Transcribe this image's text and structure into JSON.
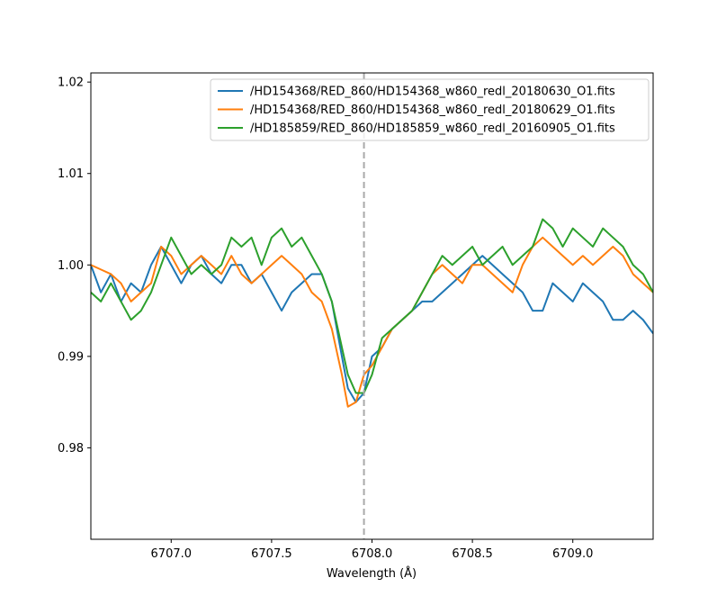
{
  "chart_data": {
    "type": "line",
    "title": "",
    "xlabel": "Wavelength (Å)",
    "ylabel": "",
    "xlim": [
      6706.6,
      6709.4
    ],
    "ylim": [
      0.97,
      1.021
    ],
    "x_ticks": [
      6707.0,
      6707.5,
      6708.0,
      6708.5,
      6709.0
    ],
    "x_tick_labels": [
      "6707.0",
      "6707.5",
      "6708.0",
      "6708.5",
      "6709.0"
    ],
    "y_ticks": [
      0.98,
      0.99,
      1.0,
      1.01,
      1.02
    ],
    "y_tick_labels": [
      "0.98",
      "0.99",
      "1.00",
      "1.01",
      "1.02"
    ],
    "reference_line": {
      "x": 6707.96,
      "style": "dashed",
      "color": "#aaaaaa"
    },
    "grid": false,
    "legend_position": "top-right",
    "series": [
      {
        "name": "/HD154368/RED_860/HD154368_w860_redl_20180630_O1.fits",
        "color": "#1f77b4",
        "x": [
          6706.6,
          6706.65,
          6706.7,
          6706.75,
          6706.8,
          6706.85,
          6706.9,
          6706.95,
          6707.0,
          6707.05,
          6707.1,
          6707.15,
          6707.2,
          6707.25,
          6707.3,
          6707.35,
          6707.4,
          6707.45,
          6707.5,
          6707.55,
          6707.6,
          6707.65,
          6707.7,
          6707.75,
          6707.8,
          6707.85,
          6707.88,
          6707.92,
          6707.96,
          6708.0,
          6708.05,
          6708.1,
          6708.15,
          6708.2,
          6708.25,
          6708.3,
          6708.35,
          6708.4,
          6708.45,
          6708.5,
          6708.55,
          6708.6,
          6708.65,
          6708.7,
          6708.75,
          6708.8,
          6708.85,
          6708.9,
          6708.95,
          6709.0,
          6709.05,
          6709.1,
          6709.15,
          6709.2,
          6709.25,
          6709.3,
          6709.35,
          6709.4
        ],
        "y": [
          1.0,
          0.997,
          0.999,
          0.996,
          0.998,
          0.997,
          1.0,
          1.002,
          1.0,
          0.998,
          1.0,
          1.001,
          0.999,
          0.998,
          1.0,
          1.0,
          0.998,
          0.999,
          0.997,
          0.995,
          0.997,
          0.998,
          0.999,
          0.999,
          0.996,
          0.99,
          0.9865,
          0.985,
          0.986,
          0.99,
          0.991,
          0.993,
          0.994,
          0.995,
          0.996,
          0.996,
          0.997,
          0.998,
          0.999,
          1.0,
          1.001,
          1.0,
          0.999,
          0.998,
          0.997,
          0.995,
          0.995,
          0.998,
          0.997,
          0.996,
          0.998,
          0.997,
          0.996,
          0.994,
          0.994,
          0.995,
          0.994,
          0.9925
        ]
      },
      {
        "name": "/HD154368/RED_860/HD154368_w860_redl_20180629_O1.fits",
        "color": "#ff7f0e",
        "x": [
          6706.6,
          6706.65,
          6706.7,
          6706.75,
          6706.8,
          6706.85,
          6706.9,
          6706.95,
          6707.0,
          6707.05,
          6707.1,
          6707.15,
          6707.2,
          6707.25,
          6707.3,
          6707.35,
          6707.4,
          6707.45,
          6707.5,
          6707.55,
          6707.6,
          6707.65,
          6707.7,
          6707.75,
          6707.8,
          6707.85,
          6707.88,
          6707.92,
          6707.96,
          6708.0,
          6708.05,
          6708.1,
          6708.15,
          6708.2,
          6708.25,
          6708.3,
          6708.35,
          6708.4,
          6708.45,
          6708.5,
          6708.55,
          6708.6,
          6708.65,
          6708.7,
          6708.75,
          6708.8,
          6708.85,
          6708.9,
          6708.95,
          6709.0,
          6709.05,
          6709.1,
          6709.15,
          6709.2,
          6709.25,
          6709.3,
          6709.35,
          6709.4
        ],
        "y": [
          1.0,
          0.9995,
          0.999,
          0.998,
          0.996,
          0.997,
          0.998,
          1.002,
          1.001,
          0.999,
          1.0,
          1.001,
          1.0,
          0.999,
          1.001,
          0.999,
          0.998,
          0.999,
          1.0,
          1.001,
          1.0,
          0.999,
          0.997,
          0.996,
          0.993,
          0.988,
          0.9845,
          0.985,
          0.988,
          0.989,
          0.991,
          0.993,
          0.994,
          0.995,
          0.997,
          0.999,
          1.0,
          0.999,
          0.998,
          1.0,
          1.0,
          0.999,
          0.998,
          0.997,
          1.0,
          1.002,
          1.003,
          1.002,
          1.001,
          1.0,
          1.001,
          1.0,
          1.001,
          1.002,
          1.001,
          0.999,
          0.998,
          0.997
        ]
      },
      {
        "name": "/HD185859/RED_860/HD185859_w860_redl_20160905_O1.fits",
        "color": "#2ca02c",
        "x": [
          6706.6,
          6706.65,
          6706.7,
          6706.75,
          6706.8,
          6706.85,
          6706.9,
          6706.95,
          6707.0,
          6707.05,
          6707.1,
          6707.15,
          6707.2,
          6707.25,
          6707.3,
          6707.35,
          6707.4,
          6707.45,
          6707.5,
          6707.55,
          6707.6,
          6707.65,
          6707.7,
          6707.75,
          6707.8,
          6707.85,
          6707.88,
          6707.92,
          6707.96,
          6708.0,
          6708.05,
          6708.1,
          6708.15,
          6708.2,
          6708.25,
          6708.3,
          6708.35,
          6708.4,
          6708.45,
          6708.5,
          6708.55,
          6708.6,
          6708.65,
          6708.7,
          6708.75,
          6708.8,
          6708.85,
          6708.9,
          6708.95,
          6709.0,
          6709.05,
          6709.1,
          6709.15,
          6709.2,
          6709.25,
          6709.3,
          6709.35,
          6709.4
        ],
        "y": [
          0.997,
          0.996,
          0.998,
          0.996,
          0.994,
          0.995,
          0.997,
          1.0,
          1.003,
          1.001,
          0.999,
          1.0,
          0.999,
          1.0,
          1.003,
          1.002,
          1.003,
          1.0,
          1.003,
          1.004,
          1.002,
          1.003,
          1.001,
          0.999,
          0.996,
          0.991,
          0.988,
          0.986,
          0.986,
          0.988,
          0.992,
          0.993,
          0.994,
          0.995,
          0.997,
          0.999,
          1.001,
          1.0,
          1.001,
          1.002,
          1.0,
          1.001,
          1.002,
          1.0,
          1.001,
          1.002,
          1.005,
          1.004,
          1.002,
          1.004,
          1.003,
          1.002,
          1.004,
          1.003,
          1.002,
          1.0,
          0.999,
          0.997
        ]
      }
    ]
  }
}
